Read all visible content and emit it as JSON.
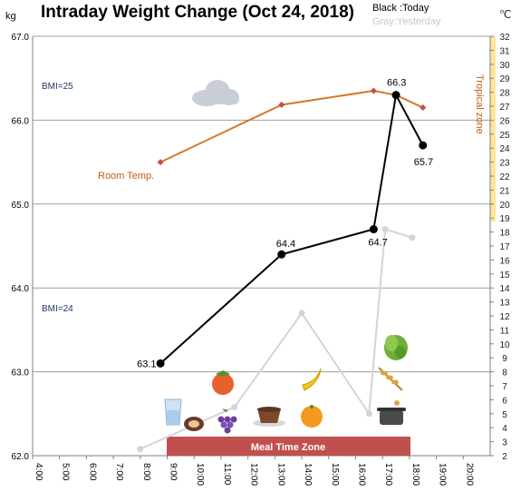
{
  "chart_data": {
    "type": "line",
    "title": "Intraday Weight Change (Oct 24, 2018)",
    "legend": {
      "today": "Black :Today",
      "yesterday": "Gray:Yesterday"
    },
    "y_unit": "kg",
    "y2_unit": "℃",
    "ylim": [
      62.0,
      67.0
    ],
    "y_ticks": [
      "62.0",
      "63.0",
      "64.0",
      "65.0",
      "66.0",
      "67.0"
    ],
    "y2lim": [
      2,
      32
    ],
    "y2_ticks": [
      "2",
      "3",
      "4",
      "5",
      "6",
      "7",
      "8",
      "9",
      "10",
      "11",
      "12",
      "13",
      "14",
      "15",
      "16",
      "17",
      "18",
      "19",
      "20",
      "21",
      "22",
      "23",
      "24",
      "25",
      "26",
      "27",
      "28",
      "29",
      "30",
      "31",
      "32"
    ],
    "xlim": [
      4,
      21
    ],
    "x_ticks": [
      "4:00",
      "5:00",
      "6:00",
      "7:00",
      "8:00",
      "9:00",
      "10:00",
      "11:00",
      "12:00",
      "13:00",
      "14:00",
      "15:00",
      "16:00",
      "17:00",
      "18:00",
      "19:00",
      "20:00"
    ],
    "series": [
      {
        "name": "Today",
        "color": "#000000",
        "x": [
          8.75,
          13.25,
          16.67,
          17.5,
          18.5
        ],
        "y": [
          63.1,
          64.4,
          64.7,
          66.3,
          65.7
        ],
        "labels": [
          "63.1",
          "64.4",
          "64.7",
          "66.3",
          "65.7"
        ]
      },
      {
        "name": "Yesterday",
        "color": "#d4d4d4",
        "x": [
          8.0,
          11.5,
          14.0,
          16.5,
          17.1,
          18.1
        ],
        "y": [
          62.08,
          62.58,
          63.7,
          62.5,
          64.7,
          64.6
        ]
      },
      {
        "name": "Room Temp.",
        "color": "#d07a2a",
        "axis": "right",
        "x": [
          8.75,
          13.25,
          16.67,
          17.5,
          18.5
        ],
        "y": [
          23.0,
          27.1,
          28.1,
          27.8,
          26.9
        ]
      }
    ],
    "annotations": {
      "bmi_25": "BMI=25",
      "bmi_24": "BMI=24",
      "room_temp": "Room Temp.",
      "tropical_zone": "Tropical zone",
      "meal_zone": "Meal Time Zone"
    },
    "grid": true
  },
  "icons": {
    "cloud": "cloud-icon",
    "persimmon": "persimmon-icon",
    "banana": "banana-icon",
    "lettuce": "lettuce-icon",
    "wheat": "wheat-icon",
    "water": "water-glass-icon",
    "sweet_potato": "sweet-potato-icon",
    "grapes": "grapes-icon",
    "coffee": "coffee-icon",
    "orange": "orange-icon",
    "pot": "pot-icon"
  },
  "colors": {
    "today": "#000000",
    "yesterday": "#d4d4d4",
    "room_temp": "#d07a2a",
    "room_temp_marker": "#c0504d",
    "tropical_band": "#ffe699",
    "meal_zone": "#c0504d",
    "axis": "#808080"
  }
}
